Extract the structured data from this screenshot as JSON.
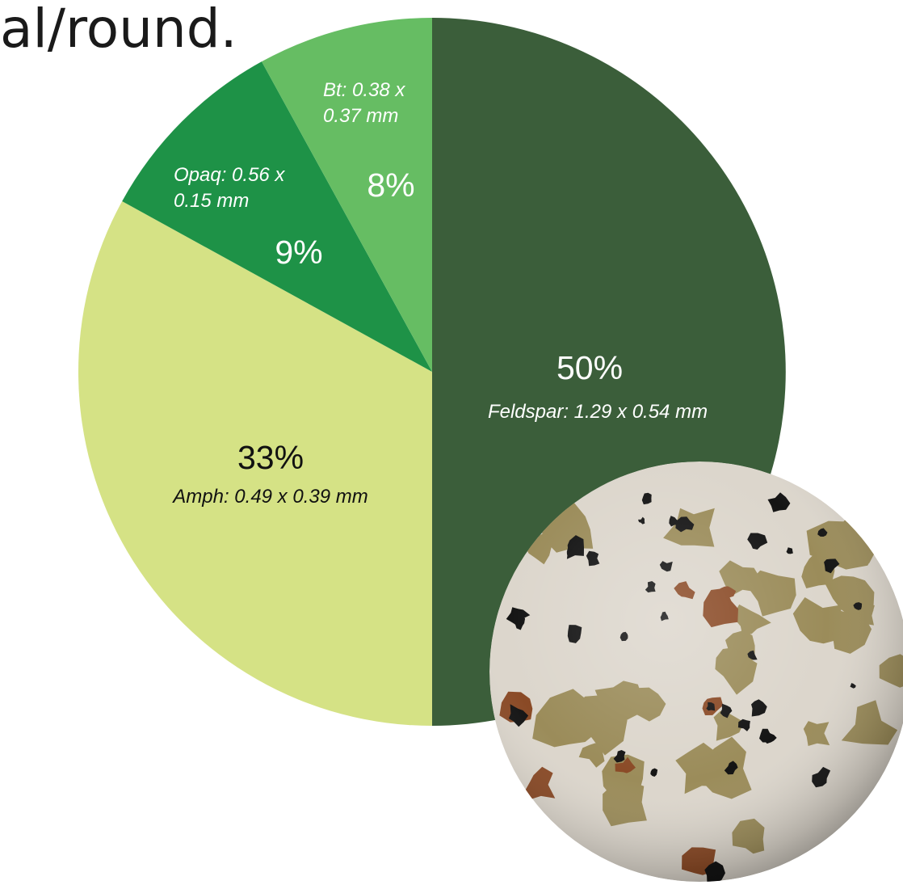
{
  "header": {
    "text": "al/round."
  },
  "colors": {
    "feldspar": "#3b5e3a",
    "amph": "#d5e285",
    "opaq": "#1e9247",
    "bt": "#66bd63"
  },
  "photo": {
    "name": "thin-section-micrograph",
    "colors": {
      "matrix": "#dcd6cc",
      "amphibole": "#9b8c5a",
      "biotite": "#8a4a26",
      "opaque": "#141414"
    }
  },
  "chart_data": {
    "type": "pie",
    "title": "",
    "slices": [
      {
        "key": "feldspar",
        "percent_label": "50%",
        "value": 50,
        "detail": "Feldspar: 1.29 x 0.54 mm"
      },
      {
        "key": "amph",
        "percent_label": "33%",
        "value": 33,
        "detail": "Amph: 0.49 x 0.39 mm"
      },
      {
        "key": "opaq",
        "percent_label": "9%",
        "value": 9,
        "detail_lines": [
          "Opaq: 0.56 x",
          "0.15 mm"
        ]
      },
      {
        "key": "bt",
        "percent_label": "8%",
        "value": 8,
        "detail_lines": [
          "Bt: 0.38 x",
          "0.37 mm"
        ]
      }
    ]
  }
}
